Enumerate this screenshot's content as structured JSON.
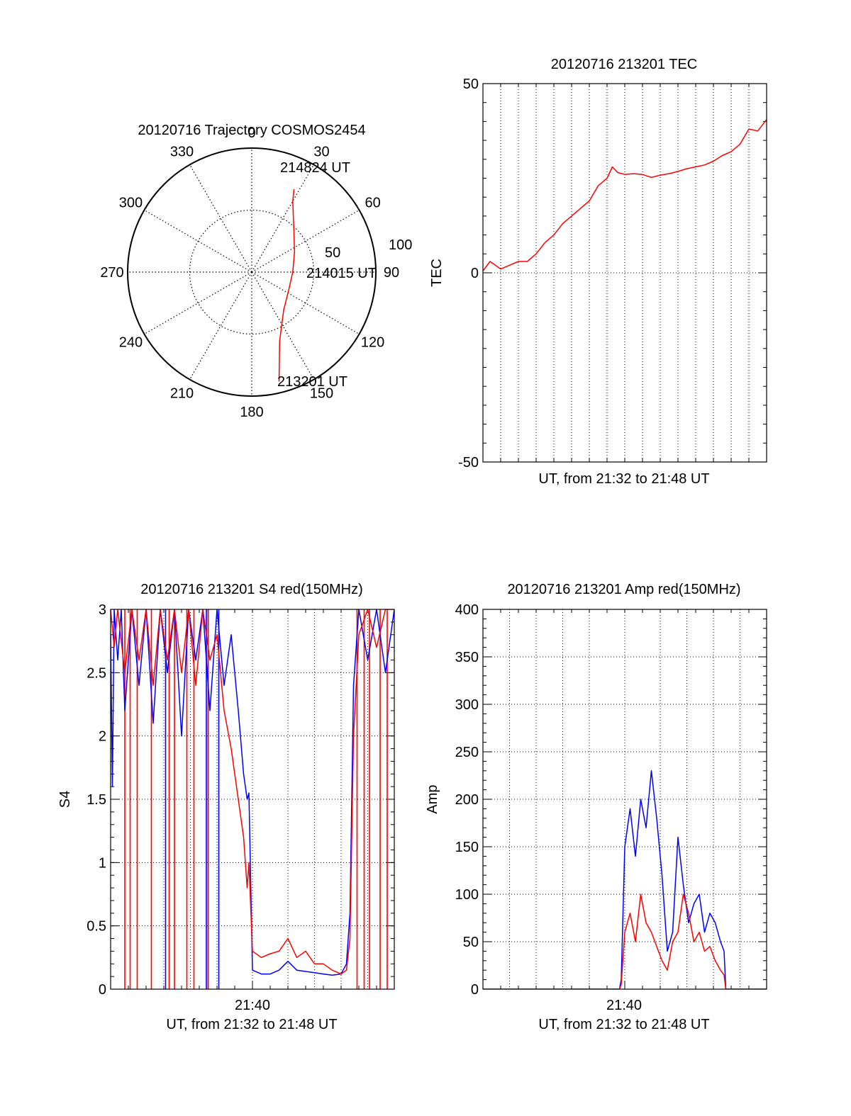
{
  "colors": {
    "red": "#ff0000",
    "blue": "#0000ff",
    "axis": "#000000",
    "grid": "#000000"
  },
  "chart_data": [
    {
      "id": "polar",
      "type": "polar-trajectory",
      "title": "20120716 Trajectory COSMOS2454",
      "angle_labels": [
        "0",
        "30",
        "60",
        "90",
        "120",
        "150",
        "180",
        "210",
        "240",
        "270",
        "300",
        "330"
      ],
      "radius_labels": [
        "50",
        "100"
      ],
      "rlim": [
        0,
        100
      ],
      "start_label": "213201 UT",
      "mid_label": "214015 UT",
      "end_label": "214824 UT",
      "trajectory": [
        [
          166,
          91
        ],
        [
          158,
          60
        ],
        [
          140,
          40
        ],
        [
          115,
          33
        ],
        [
          90,
          33
        ],
        [
          65,
          38
        ],
        [
          45,
          48
        ],
        [
          30,
          66
        ],
        [
          27,
          75
        ]
      ]
    },
    {
      "id": "tec",
      "type": "line",
      "title": "20120716 213201 TEC",
      "xlabel": "UT, from 21:32 to 21:48 UT",
      "ylabel": "TEC",
      "ylim": [
        -50,
        50
      ],
      "yticks": [
        "-50",
        "0",
        "50"
      ],
      "xlim": [
        0,
        16
      ],
      "grid": true,
      "series": [
        {
          "color": "red",
          "x": [
            0,
            0.4,
            1,
            1.5,
            2,
            2.5,
            3,
            3.5,
            4,
            4.5,
            5,
            5.5,
            6,
            6.5,
            7,
            7.3,
            7.6,
            8,
            8.5,
            9,
            9.5,
            10,
            10.5,
            11,
            11.5,
            12,
            12.5,
            13,
            13.5,
            14,
            14.5,
            15,
            15.5,
            16
          ],
          "y": [
            0.5,
            3,
            1,
            2,
            3,
            3,
            5,
            8,
            10,
            13,
            15,
            17,
            19,
            23,
            25,
            28,
            26.5,
            26,
            26.2,
            26,
            25.2,
            25.8,
            26.2,
            26.8,
            27.5,
            28,
            28.5,
            29.5,
            31,
            32,
            34,
            38,
            37.5,
            40.5
          ]
        }
      ]
    },
    {
      "id": "s4",
      "type": "line",
      "title": "20120716 213201 S4 red(150MHz)",
      "xlabel": "UT, from 21:32 to 21:48 UT",
      "ylabel": "S4",
      "ylim": [
        0,
        3
      ],
      "yticks": [
        "0",
        "0.5",
        "1",
        "1.5",
        "2",
        "2.5",
        "3"
      ],
      "xlim": [
        0,
        16
      ],
      "xtick_label": "21:40",
      "xtick_value": 8,
      "grid": true,
      "series": [
        {
          "color": "blue",
          "x": [
            0,
            0.1,
            0.2,
            0.4,
            0.6,
            0.8,
            1.2,
            1.6,
            2,
            2.4,
            2.8,
            3.2,
            3.6,
            4,
            4.4,
            4.8,
            5.2,
            5.6,
            6,
            6.4,
            6.8,
            7.2,
            7.5,
            7.7,
            7.8,
            8,
            8.5,
            9,
            9.5,
            10,
            10.5,
            11,
            11.5,
            12,
            12.5,
            13,
            13.3,
            13.5,
            13.7,
            14,
            14.5,
            15,
            15.5,
            16
          ],
          "y": [
            2.8,
            1.6,
            3,
            2.6,
            3,
            2.2,
            3,
            2.4,
            3,
            2.1,
            3,
            2.5,
            3,
            2.0,
            3,
            2.6,
            3,
            2.2,
            3,
            2.4,
            2.8,
            2.2,
            1.7,
            1.5,
            1.55,
            0.15,
            0.12,
            0.12,
            0.15,
            0.22,
            0.15,
            0.14,
            0.13,
            0.12,
            0.11,
            0.12,
            0.2,
            0.6,
            2.4,
            3,
            2.6,
            3,
            2.5,
            3
          ]
        },
        {
          "color": "red",
          "x": [
            0,
            0.2,
            0.4,
            0.8,
            1.2,
            1.6,
            2,
            2.4,
            2.8,
            3.2,
            3.6,
            4,
            4.4,
            4.8,
            5.2,
            5.6,
            6,
            6.4,
            6.8,
            7.2,
            7.5,
            7.7,
            7.8,
            8,
            8.5,
            9,
            9.5,
            10,
            10.5,
            11,
            11.5,
            12,
            12.5,
            13,
            13.3,
            13.5,
            13.7,
            14,
            14.5,
            15,
            15.5,
            16
          ],
          "y": [
            3,
            2.7,
            3,
            2.5,
            3,
            2.6,
            3,
            2.4,
            3,
            2.6,
            3,
            2.5,
            3,
            2.4,
            3,
            2.6,
            2.8,
            2.2,
            1.9,
            1.5,
            1.2,
            0.8,
            1.0,
            0.3,
            0.25,
            0.28,
            0.3,
            0.4,
            0.25,
            0.3,
            0.2,
            0.2,
            0.15,
            0.12,
            0.15,
            0.4,
            2.0,
            2.8,
            3,
            2.7,
            3,
            3
          ]
        }
      ],
      "dropouts_red": [
        0.8,
        1.1,
        1.5,
        2.3,
        3.3,
        3.6,
        4.3,
        4.7,
        5.5,
        13.9,
        14.3,
        14.6,
        15.2,
        15.6
      ],
      "dropouts_blue": [
        3.1,
        5.4,
        5.5,
        6.1
      ]
    },
    {
      "id": "amp",
      "type": "line",
      "title": "20120716 213201 Amp red(150MHz)",
      "xlabel": "UT, from 21:32 to 21:48 UT",
      "ylabel": "Amp",
      "ylim": [
        0,
        400
      ],
      "yticks": [
        "0",
        "50",
        "100",
        "150",
        "200",
        "250",
        "300",
        "350",
        "400"
      ],
      "xlim": [
        0,
        16
      ],
      "xtick_label": "21:40",
      "xtick_value": 8,
      "grid": true,
      "series": [
        {
          "color": "blue",
          "x": [
            0,
            7.7,
            7.8,
            8.0,
            8.3,
            8.6,
            8.9,
            9.2,
            9.5,
            9.8,
            10.1,
            10.4,
            10.7,
            11.0,
            11.3,
            11.6,
            11.9,
            12.2,
            12.5,
            12.8,
            13.1,
            13.4,
            13.6,
            13.7,
            16
          ],
          "y": [
            0,
            0,
            10,
            150,
            190,
            140,
            200,
            170,
            230,
            180,
            120,
            40,
            60,
            160,
            110,
            70,
            90,
            100,
            60,
            80,
            70,
            50,
            40,
            0,
            0
          ]
        },
        {
          "color": "red",
          "x": [
            0,
            7.7,
            7.8,
            8.0,
            8.3,
            8.6,
            8.9,
            9.2,
            9.5,
            9.8,
            10.1,
            10.4,
            10.7,
            11.0,
            11.3,
            11.6,
            11.9,
            12.2,
            12.5,
            12.8,
            13.1,
            13.4,
            13.6,
            13.7,
            16
          ],
          "y": [
            0,
            0,
            5,
            60,
            80,
            50,
            100,
            70,
            60,
            45,
            30,
            20,
            50,
            60,
            100,
            80,
            50,
            60,
            40,
            45,
            30,
            20,
            15,
            0,
            0
          ]
        }
      ]
    }
  ]
}
